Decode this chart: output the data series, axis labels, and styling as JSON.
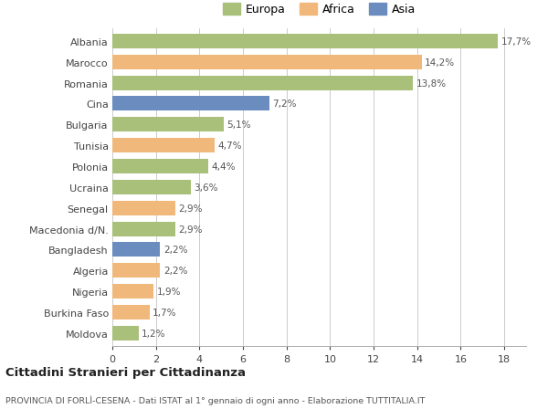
{
  "countries": [
    "Albania",
    "Marocco",
    "Romania",
    "Cina",
    "Bulgaria",
    "Tunisia",
    "Polonia",
    "Ucraina",
    "Senegal",
    "Macedonia d/N.",
    "Bangladesh",
    "Algeria",
    "Nigeria",
    "Burkina Faso",
    "Moldova"
  ],
  "values": [
    17.7,
    14.2,
    13.8,
    7.2,
    5.1,
    4.7,
    4.4,
    3.6,
    2.9,
    2.9,
    2.2,
    2.2,
    1.9,
    1.7,
    1.2
  ],
  "labels": [
    "17,7%",
    "14,2%",
    "13,8%",
    "7,2%",
    "5,1%",
    "4,7%",
    "4,4%",
    "3,6%",
    "2,9%",
    "2,9%",
    "2,2%",
    "2,2%",
    "1,9%",
    "1,7%",
    "1,2%"
  ],
  "continents": [
    "Europa",
    "Africa",
    "Europa",
    "Asia",
    "Europa",
    "Africa",
    "Europa",
    "Europa",
    "Africa",
    "Europa",
    "Asia",
    "Africa",
    "Africa",
    "Africa",
    "Europa"
  ],
  "colors": {
    "Europa": "#a8c07a",
    "Africa": "#f0b87a",
    "Asia": "#6b8cbf"
  },
  "title": "Cittadini Stranieri per Cittadinanza",
  "subtitle": "PROVINCIA DI FORLÌ-CESENA - Dati ISTAT al 1° gennaio di ogni anno - Elaborazione TUTTITALIA.IT",
  "xlim": [
    0,
    19
  ],
  "xticks": [
    0,
    2,
    4,
    6,
    8,
    10,
    12,
    14,
    16,
    18
  ],
  "background_color": "#ffffff",
  "grid_color": "#cccccc"
}
